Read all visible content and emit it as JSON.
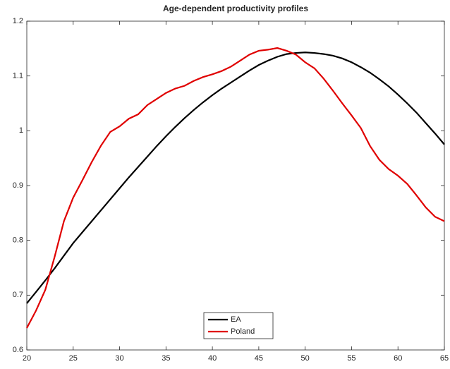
{
  "chart_data": {
    "type": "line",
    "title": "Age-dependent productivity profiles",
    "x": [
      20,
      21,
      22,
      23,
      24,
      25,
      26,
      27,
      28,
      29,
      30,
      31,
      32,
      33,
      34,
      35,
      36,
      37,
      38,
      39,
      40,
      41,
      42,
      43,
      44,
      45,
      46,
      47,
      48,
      49,
      50,
      51,
      52,
      53,
      54,
      55,
      56,
      57,
      58,
      59,
      60,
      61,
      62,
      63,
      64,
      65
    ],
    "series": [
      {
        "name": "EA",
        "color": "#000000",
        "values": [
          0.685,
          0.706,
          0.727,
          0.749,
          0.772,
          0.795,
          0.815,
          0.835,
          0.855,
          0.875,
          0.895,
          0.915,
          0.934,
          0.953,
          0.972,
          0.99,
          1.007,
          1.023,
          1.038,
          1.052,
          1.065,
          1.077,
          1.088,
          1.099,
          1.11,
          1.12,
          1.128,
          1.135,
          1.14,
          1.142,
          1.143,
          1.142,
          1.14,
          1.137,
          1.132,
          1.125,
          1.116,
          1.106,
          1.094,
          1.081,
          1.066,
          1.05,
          1.033,
          1.014,
          0.995,
          0.975
        ]
      },
      {
        "name": "Poland",
        "color": "#e00000",
        "values": [
          0.64,
          0.672,
          0.71,
          0.77,
          0.835,
          0.878,
          0.91,
          0.943,
          0.973,
          0.998,
          1.008,
          1.022,
          1.03,
          1.047,
          1.058,
          1.069,
          1.077,
          1.082,
          1.091,
          1.098,
          1.103,
          1.109,
          1.117,
          1.128,
          1.139,
          1.146,
          1.148,
          1.151,
          1.146,
          1.139,
          1.125,
          1.114,
          1.095,
          1.073,
          1.05,
          1.028,
          1.005,
          0.972,
          0.947,
          0.93,
          0.918,
          0.903,
          0.882,
          0.86,
          0.843,
          0.835
        ]
      }
    ],
    "xlim": [
      20,
      65
    ],
    "xticks": [
      20,
      25,
      30,
      35,
      40,
      45,
      50,
      55,
      60,
      65
    ],
    "ylim": [
      0.6,
      1.2
    ],
    "yticks": [
      0.6,
      0.7,
      0.8,
      0.9,
      1,
      1.1,
      1.2
    ],
    "legend": "bottom"
  }
}
